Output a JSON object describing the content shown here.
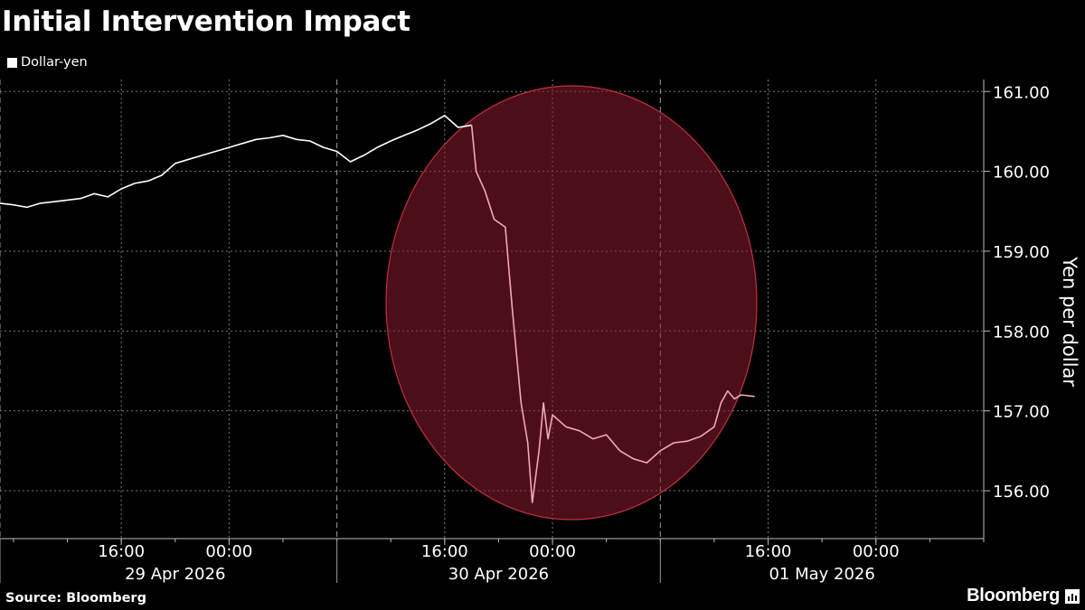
{
  "chart_data": {
    "type": "line",
    "title": "Initial Intervention Impact",
    "ylabel": "Yen per dollar",
    "ylim": [
      155.4,
      161.15
    ],
    "y_ticks": [
      "156.00",
      "157.00",
      "158.00",
      "159.00",
      "160.00",
      "161.00"
    ],
    "x_ticks": [
      {
        "time": "2026-04-29T16:00",
        "label": "16:00"
      },
      {
        "time": "2026-04-30T00:00",
        "label": "00:00"
      },
      {
        "time": "2026-04-30T16:00",
        "label": "16:00"
      },
      {
        "time": "2026-05-01T00:00",
        "label": "00:00"
      },
      {
        "time": "2026-05-01T16:00",
        "label": "16:00"
      },
      {
        "time": "2026-05-02T00:00",
        "label": "00:00"
      }
    ],
    "date_labels": [
      {
        "time": "2026-04-29T20:00",
        "label": "29 Apr 2026"
      },
      {
        "time": "2026-04-30T20:00",
        "label": "30 Apr 2026"
      },
      {
        "time": "2026-05-01T20:00",
        "label": "01 May 2026"
      }
    ],
    "xlim": [
      "2026-04-29T07:00",
      "2026-05-02T08:00"
    ],
    "legend": {
      "position": "top-left",
      "entries": [
        "Dollar-yen"
      ]
    },
    "grid": true,
    "series": [
      {
        "name": "Dollar-yen",
        "color": "#ffffff",
        "highlight_color": "#f2a8b4",
        "points": [
          [
            "2026-04-29T07:00",
            159.6
          ],
          [
            "2026-04-29T08:00",
            159.58
          ],
          [
            "2026-04-29T09:00",
            159.55
          ],
          [
            "2026-04-29T10:00",
            159.6
          ],
          [
            "2026-04-29T11:00",
            159.62
          ],
          [
            "2026-04-29T12:00",
            159.64
          ],
          [
            "2026-04-29T13:00",
            159.66
          ],
          [
            "2026-04-29T14:00",
            159.72
          ],
          [
            "2026-04-29T15:00",
            159.68
          ],
          [
            "2026-04-29T16:00",
            159.78
          ],
          [
            "2026-04-29T17:00",
            159.85
          ],
          [
            "2026-04-29T18:00",
            159.88
          ],
          [
            "2026-04-29T19:00",
            159.95
          ],
          [
            "2026-04-29T20:00",
            160.1
          ],
          [
            "2026-04-29T21:00",
            160.15
          ],
          [
            "2026-04-29T22:00",
            160.2
          ],
          [
            "2026-04-29T23:00",
            160.25
          ],
          [
            "2026-04-30T00:00",
            160.3
          ],
          [
            "2026-04-30T01:00",
            160.35
          ],
          [
            "2026-04-30T02:00",
            160.4
          ],
          [
            "2026-04-30T03:00",
            160.42
          ],
          [
            "2026-04-30T04:00",
            160.45
          ],
          [
            "2026-04-30T05:00",
            160.4
          ],
          [
            "2026-04-30T06:00",
            160.38
          ],
          [
            "2026-04-30T07:00",
            160.3
          ],
          [
            "2026-04-30T08:00",
            160.25
          ],
          [
            "2026-04-30T09:00",
            160.12
          ],
          [
            "2026-04-30T10:00",
            160.2
          ],
          [
            "2026-04-30T11:00",
            160.3
          ],
          [
            "2026-04-30T12:00",
            160.38
          ],
          [
            "2026-04-30T13:00",
            160.45
          ],
          [
            "2026-04-30T14:00",
            160.52
          ],
          [
            "2026-04-30T15:00",
            160.6
          ],
          [
            "2026-04-30T16:00",
            160.7
          ],
          [
            "2026-04-30T17:00",
            160.55
          ],
          [
            "2026-04-30T18:00",
            160.58
          ],
          [
            "2026-04-30T18:20",
            160.0
          ],
          [
            "2026-04-30T19:00",
            159.75
          ],
          [
            "2026-04-30T19:40",
            159.4
          ],
          [
            "2026-04-30T20:30",
            159.3
          ],
          [
            "2026-04-30T21:00",
            158.3
          ],
          [
            "2026-04-30T21:40",
            157.1
          ],
          [
            "2026-04-30T22:10",
            156.6
          ],
          [
            "2026-04-30T22:30",
            155.85
          ],
          [
            "2026-04-30T23:00",
            156.5
          ],
          [
            "2026-04-30T23:20",
            157.1
          ],
          [
            "2026-04-30T23:40",
            156.65
          ],
          [
            "2026-05-01T00:00",
            156.95
          ],
          [
            "2026-05-01T01:00",
            156.8
          ],
          [
            "2026-05-01T02:00",
            156.75
          ],
          [
            "2026-05-01T03:00",
            156.65
          ],
          [
            "2026-05-01T04:00",
            156.7
          ],
          [
            "2026-05-01T05:00",
            156.5
          ],
          [
            "2026-05-01T06:00",
            156.4
          ],
          [
            "2026-05-01T07:00",
            156.35
          ],
          [
            "2026-05-01T08:00",
            156.5
          ],
          [
            "2026-05-01T09:00",
            156.6
          ],
          [
            "2026-05-01T10:00",
            156.62
          ],
          [
            "2026-05-01T11:00",
            156.68
          ],
          [
            "2026-05-01T12:00",
            156.8
          ],
          [
            "2026-05-01T12:30",
            157.1
          ],
          [
            "2026-05-01T13:00",
            157.25
          ],
          [
            "2026-05-01T13:30",
            157.15
          ],
          [
            "2026-05-01T14:00",
            157.2
          ],
          [
            "2026-05-01T15:00",
            157.18
          ]
        ]
      }
    ],
    "highlight_region": {
      "start": "2026-04-30T18:00",
      "end": "2026-05-01T15:00",
      "shape": "circle",
      "color": "#8b1a2b"
    }
  },
  "source": "Source: Bloomberg",
  "brand": "Bloomberg"
}
